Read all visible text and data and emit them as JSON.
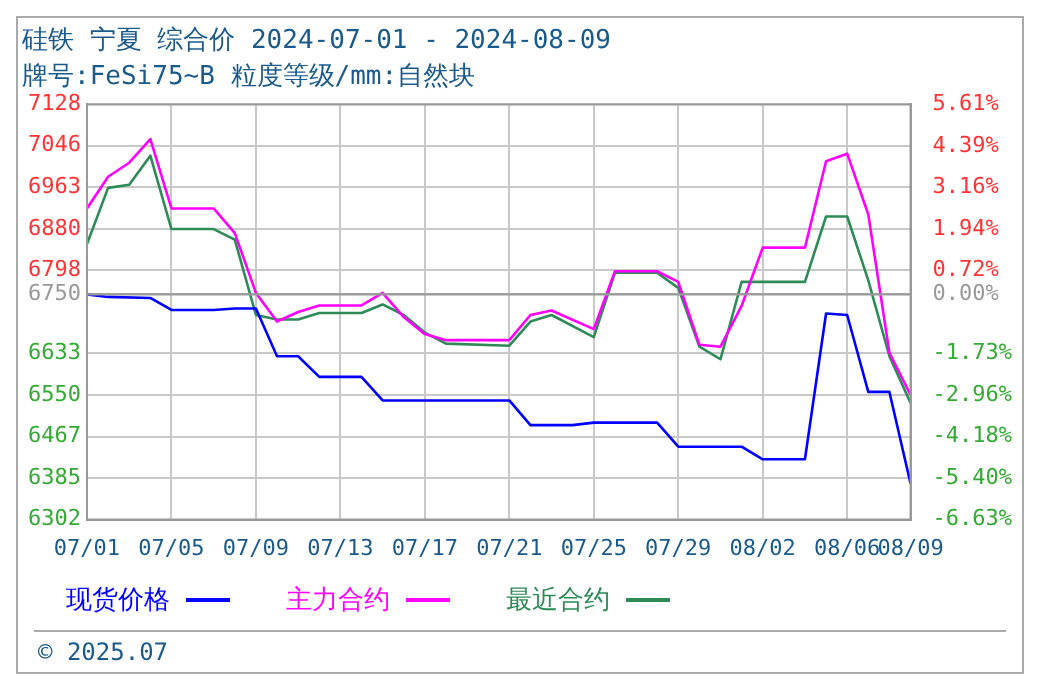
{
  "chart_data": {
    "type": "line",
    "title": "硅铁 宁夏 综合价 2024-07-01 - 2024-08-09",
    "subtitle": "牌号:FeSi75~B 粒度等级/mm:自然块",
    "xlim": [
      "2024-07-01",
      "2024-08-09"
    ],
    "xticks": [
      {
        "value": "2024-07-01",
        "label": "07/01"
      },
      {
        "value": "2024-07-05",
        "label": "07/05"
      },
      {
        "value": "2024-07-09",
        "label": "07/09"
      },
      {
        "value": "2024-07-13",
        "label": "07/13"
      },
      {
        "value": "2024-07-17",
        "label": "07/17"
      },
      {
        "value": "2024-07-21",
        "label": "07/21"
      },
      {
        "value": "2024-07-25",
        "label": "07/25"
      },
      {
        "value": "2024-07-29",
        "label": "07/29"
      },
      {
        "value": "2024-08-02",
        "label": "08/02"
      },
      {
        "value": "2024-08-06",
        "label": "08/06"
      },
      {
        "value": "2024-08-09",
        "label": "08/09"
      }
    ],
    "ylim": [
      6302,
      7128
    ],
    "yticks": [
      6302,
      6385,
      6467,
      6550,
      6633,
      6750,
      6798,
      6880,
      6963,
      7046,
      7128
    ],
    "y2lim": [
      -6.63,
      5.61
    ],
    "y2ticks": [
      {
        "value": -6.63,
        "label": "-6.63%"
      },
      {
        "value": -5.4,
        "label": "-5.40%"
      },
      {
        "value": -4.18,
        "label": "-4.18%"
      },
      {
        "value": -2.96,
        "label": "-2.96%"
      },
      {
        "value": -1.73,
        "label": "-1.73%"
      },
      {
        "value": 0,
        "label": "0.00%"
      },
      {
        "value": 0.72,
        "label": "0.72%"
      },
      {
        "value": 1.94,
        "label": "1.94%"
      },
      {
        "value": 3.16,
        "label": "3.16%"
      },
      {
        "value": 4.39,
        "label": "4.39%"
      },
      {
        "value": 5.61,
        "label": "5.61%"
      }
    ],
    "grid": true,
    "legend": "bottom",
    "marker": "none",
    "line_style": "solid",
    "ref_lines": [
      {
        "axis": "y",
        "value": 6750,
        "color": "#999999"
      }
    ],
    "annotations": [
      "© 2025.07"
    ],
    "series": [
      {
        "name": "现货价格",
        "color": "#0000ff",
        "x": [
          "2024-07-01",
          "2024-07-02",
          "2024-07-04",
          "2024-07-05",
          "2024-07-07",
          "2024-07-08",
          "2024-07-09",
          "2024-07-10",
          "2024-07-11",
          "2024-07-12",
          "2024-07-14",
          "2024-07-15",
          "2024-07-21",
          "2024-07-22",
          "2024-07-24",
          "2024-07-25",
          "2024-07-28",
          "2024-07-29",
          "2024-08-01",
          "2024-08-02",
          "2024-08-04",
          "2024-08-05",
          "2024-08-06",
          "2024-08-07",
          "2024-08-08",
          "2024-08-09"
        ],
        "values": [
          6750,
          6745,
          6743,
          6719,
          6719,
          6722,
          6722,
          6627,
          6627,
          6586,
          6586,
          6539,
          6539,
          6490,
          6490,
          6495,
          6495,
          6447,
          6447,
          6422,
          6422,
          6712,
          6709,
          6556,
          6556,
          6374
        ]
      },
      {
        "name": "主力合约",
        "color": "#ff00ff",
        "x": [
          "2024-07-01",
          "2024-07-02",
          "2024-07-03",
          "2024-07-04",
          "2024-07-05",
          "2024-07-07",
          "2024-07-08",
          "2024-07-09",
          "2024-07-10",
          "2024-07-11",
          "2024-07-12",
          "2024-07-14",
          "2024-07-15",
          "2024-07-16",
          "2024-07-17",
          "2024-07-18",
          "2024-07-21",
          "2024-07-22",
          "2024-07-23",
          "2024-07-25",
          "2024-07-26",
          "2024-07-28",
          "2024-07-29",
          "2024-07-30",
          "2024-07-31",
          "2024-08-01",
          "2024-08-02",
          "2024-08-04",
          "2024-08-05",
          "2024-08-06",
          "2024-08-07",
          "2024-08-08",
          "2024-08-09"
        ],
        "values": [
          6921,
          6984,
          7012,
          7059,
          6921,
          6921,
          6872,
          6753,
          6696,
          6715,
          6728,
          6728,
          6753,
          6705,
          6671,
          6659,
          6659,
          6709,
          6718,
          6681,
          6796,
          6796,
          6775,
          6650,
          6646,
          6727,
          6843,
          6843,
          7015,
          7030,
          6909,
          6634,
          6550
        ]
      },
      {
        "name": "最近合约",
        "color": "#2e8b57",
        "x": [
          "2024-07-01",
          "2024-07-02",
          "2024-07-03",
          "2024-07-04",
          "2024-07-05",
          "2024-07-07",
          "2024-07-08",
          "2024-07-09",
          "2024-07-10",
          "2024-07-11",
          "2024-07-12",
          "2024-07-14",
          "2024-07-15",
          "2024-07-16",
          "2024-07-17",
          "2024-07-18",
          "2024-07-21",
          "2024-07-22",
          "2024-07-23",
          "2024-07-25",
          "2024-07-26",
          "2024-07-28",
          "2024-07-29",
          "2024-07-30",
          "2024-07-31",
          "2024-08-01",
          "2024-08-04",
          "2024-08-05",
          "2024-08-06",
          "2024-08-07",
          "2024-08-08",
          "2024-08-09"
        ],
        "values": [
          6850,
          6962,
          6968,
          7026,
          6880,
          6880,
          6859,
          6709,
          6700,
          6700,
          6713,
          6713,
          6730,
          6709,
          6674,
          6652,
          6648,
          6696,
          6709,
          6665,
          6793,
          6793,
          6763,
          6646,
          6621,
          6775,
          6775,
          6905,
          6905,
          6778,
          6627,
          6534
        ]
      }
    ]
  }
}
